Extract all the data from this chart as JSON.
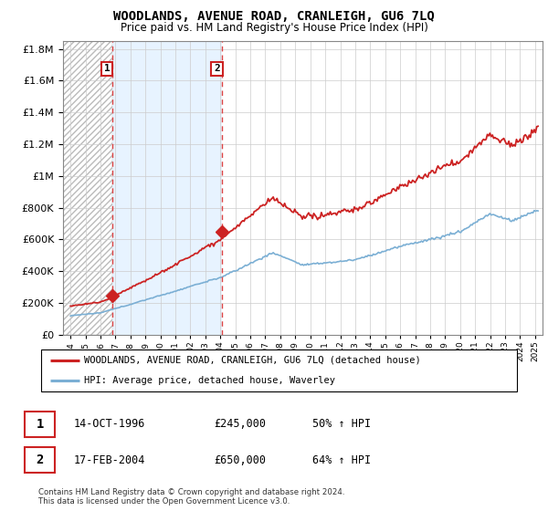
{
  "title": "WOODLANDS, AVENUE ROAD, CRANLEIGH, GU6 7LQ",
  "subtitle": "Price paid vs. HM Land Registry's House Price Index (HPI)",
  "legend_line1": "WOODLANDS, AVENUE ROAD, CRANLEIGH, GU6 7LQ (detached house)",
  "legend_line2": "HPI: Average price, detached house, Waverley",
  "sale1_label": "1",
  "sale1_date": "14-OCT-1996",
  "sale1_price": "£245,000",
  "sale1_hpi": "50% ↑ HPI",
  "sale1_year": 1996.79,
  "sale1_value": 245000,
  "sale2_label": "2",
  "sale2_date": "17-FEB-2004",
  "sale2_price": "£650,000",
  "sale2_hpi": "64% ↑ HPI",
  "sale2_year": 2004.12,
  "sale2_value": 650000,
  "hpi_color": "#7bafd4",
  "price_color": "#cc2222",
  "vline_color": "#dd4444",
  "ylim": [
    0,
    1850000
  ],
  "xlim": [
    1993.5,
    2025.5
  ],
  "yticks": [
    0,
    200000,
    400000,
    600000,
    800000,
    1000000,
    1200000,
    1400000,
    1600000,
    1800000
  ],
  "footer": "Contains HM Land Registry data © Crown copyright and database right 2024.\nThis data is licensed under the Open Government Licence v3.0."
}
